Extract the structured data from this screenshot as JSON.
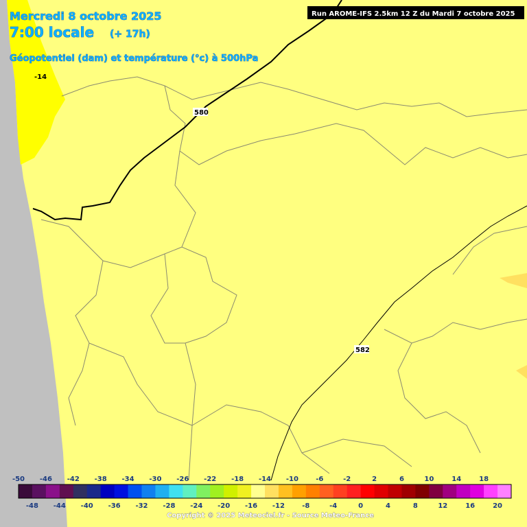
{
  "header": {
    "date": "Mercredi 8 octobre 2025",
    "time": "7:00 locale",
    "lead": "(+ 17h)",
    "field": "Géopotentiel (dam) et température (°c) à 500hPa",
    "run": "Run AROME-IFS 2.5km 12 Z du Mardi 7 octobre 2025"
  },
  "contour_labels": [
    "-14",
    "580",
    "582"
  ],
  "legend": {
    "top_labels": [
      -50,
      -46,
      -42,
      -38,
      -34,
      -30,
      -26,
      -22,
      -18,
      -14,
      -10,
      -6,
      -2,
      2,
      6,
      10,
      14,
      18
    ],
    "bottom_labels": [
      -48,
      -44,
      -40,
      -36,
      -32,
      -28,
      -24,
      -20,
      -16,
      -12,
      -8,
      -4,
      0,
      4,
      8,
      12,
      16,
      20
    ],
    "colors": [
      "#3a0a3a",
      "#5a1060",
      "#8a108a",
      "#601050",
      "#303060",
      "#1a2a8a",
      "#0000c0",
      "#0010e0",
      "#0050f0",
      "#1080f0",
      "#20b0f0",
      "#40e0f0",
      "#60f0c0",
      "#80f060",
      "#a0f020",
      "#d0f000",
      "#f0f020",
      "#ffff90",
      "#ffe060",
      "#ffc020",
      "#ffa000",
      "#ff8000",
      "#ff6020",
      "#ff4020",
      "#ff2020",
      "#ff0000",
      "#e00000",
      "#c00000",
      "#a00000",
      "#800000",
      "#800040",
      "#a00080",
      "#c000c0",
      "#e000e0",
      "#ff40ff",
      "#ff80ff"
    ]
  },
  "copyright": "Copyright © 2025 Meteociel.fr - Source Meteo-France"
}
